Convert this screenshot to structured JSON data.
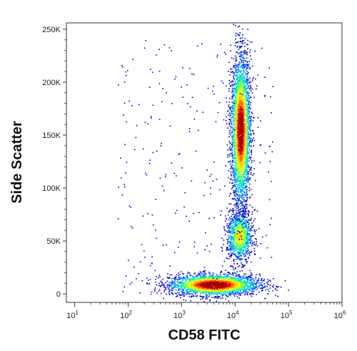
{
  "chart_data": {
    "type": "scatter",
    "title": "",
    "xlabel": "CD58 FITC",
    "ylabel": "Side Scatter",
    "x_scale": "log",
    "xlim": [
      7,
      1000000
    ],
    "ylim": [
      -8000,
      256000
    ],
    "x_ticks": [
      {
        "value": 10,
        "label_base": "10",
        "label_exp": "1"
      },
      {
        "value": 100,
        "label_base": "10",
        "label_exp": "2"
      },
      {
        "value": 1000,
        "label_base": "10",
        "label_exp": "3"
      },
      {
        "value": 10000,
        "label_base": "10",
        "label_exp": "4"
      },
      {
        "value": 100000,
        "label_base": "10",
        "label_exp": "5"
      },
      {
        "value": 1000000,
        "label_base": "10",
        "label_exp": "6"
      }
    ],
    "y_ticks": [
      {
        "value": 0,
        "label": "0"
      },
      {
        "value": 50000,
        "label": "50K"
      },
      {
        "value": 100000,
        "label": "100K"
      },
      {
        "value": 150000,
        "label": "150K"
      },
      {
        "value": 200000,
        "label": "200K"
      },
      {
        "value": 250000,
        "label": "250K"
      }
    ],
    "grid": false,
    "colormap": [
      "#0000c8",
      "#0050ff",
      "#00b4ff",
      "#00e6b4",
      "#64ff50",
      "#dcff00",
      "#ffc800",
      "#ff6400",
      "#dc0000",
      "#a00000"
    ],
    "populations": [
      {
        "x_center": 4000,
        "y_center": 9000,
        "x_spread_log": 0.42,
        "y_spread": 5000,
        "density": 1.0
      },
      {
        "x_center": 12000,
        "y_center": 55000,
        "x_spread_log": 0.12,
        "y_spread": 12000,
        "density": 0.6
      },
      {
        "x_center": 12500,
        "y_center": 155000,
        "x_spread_log": 0.09,
        "y_spread": 35000,
        "density": 0.95
      }
    ]
  }
}
